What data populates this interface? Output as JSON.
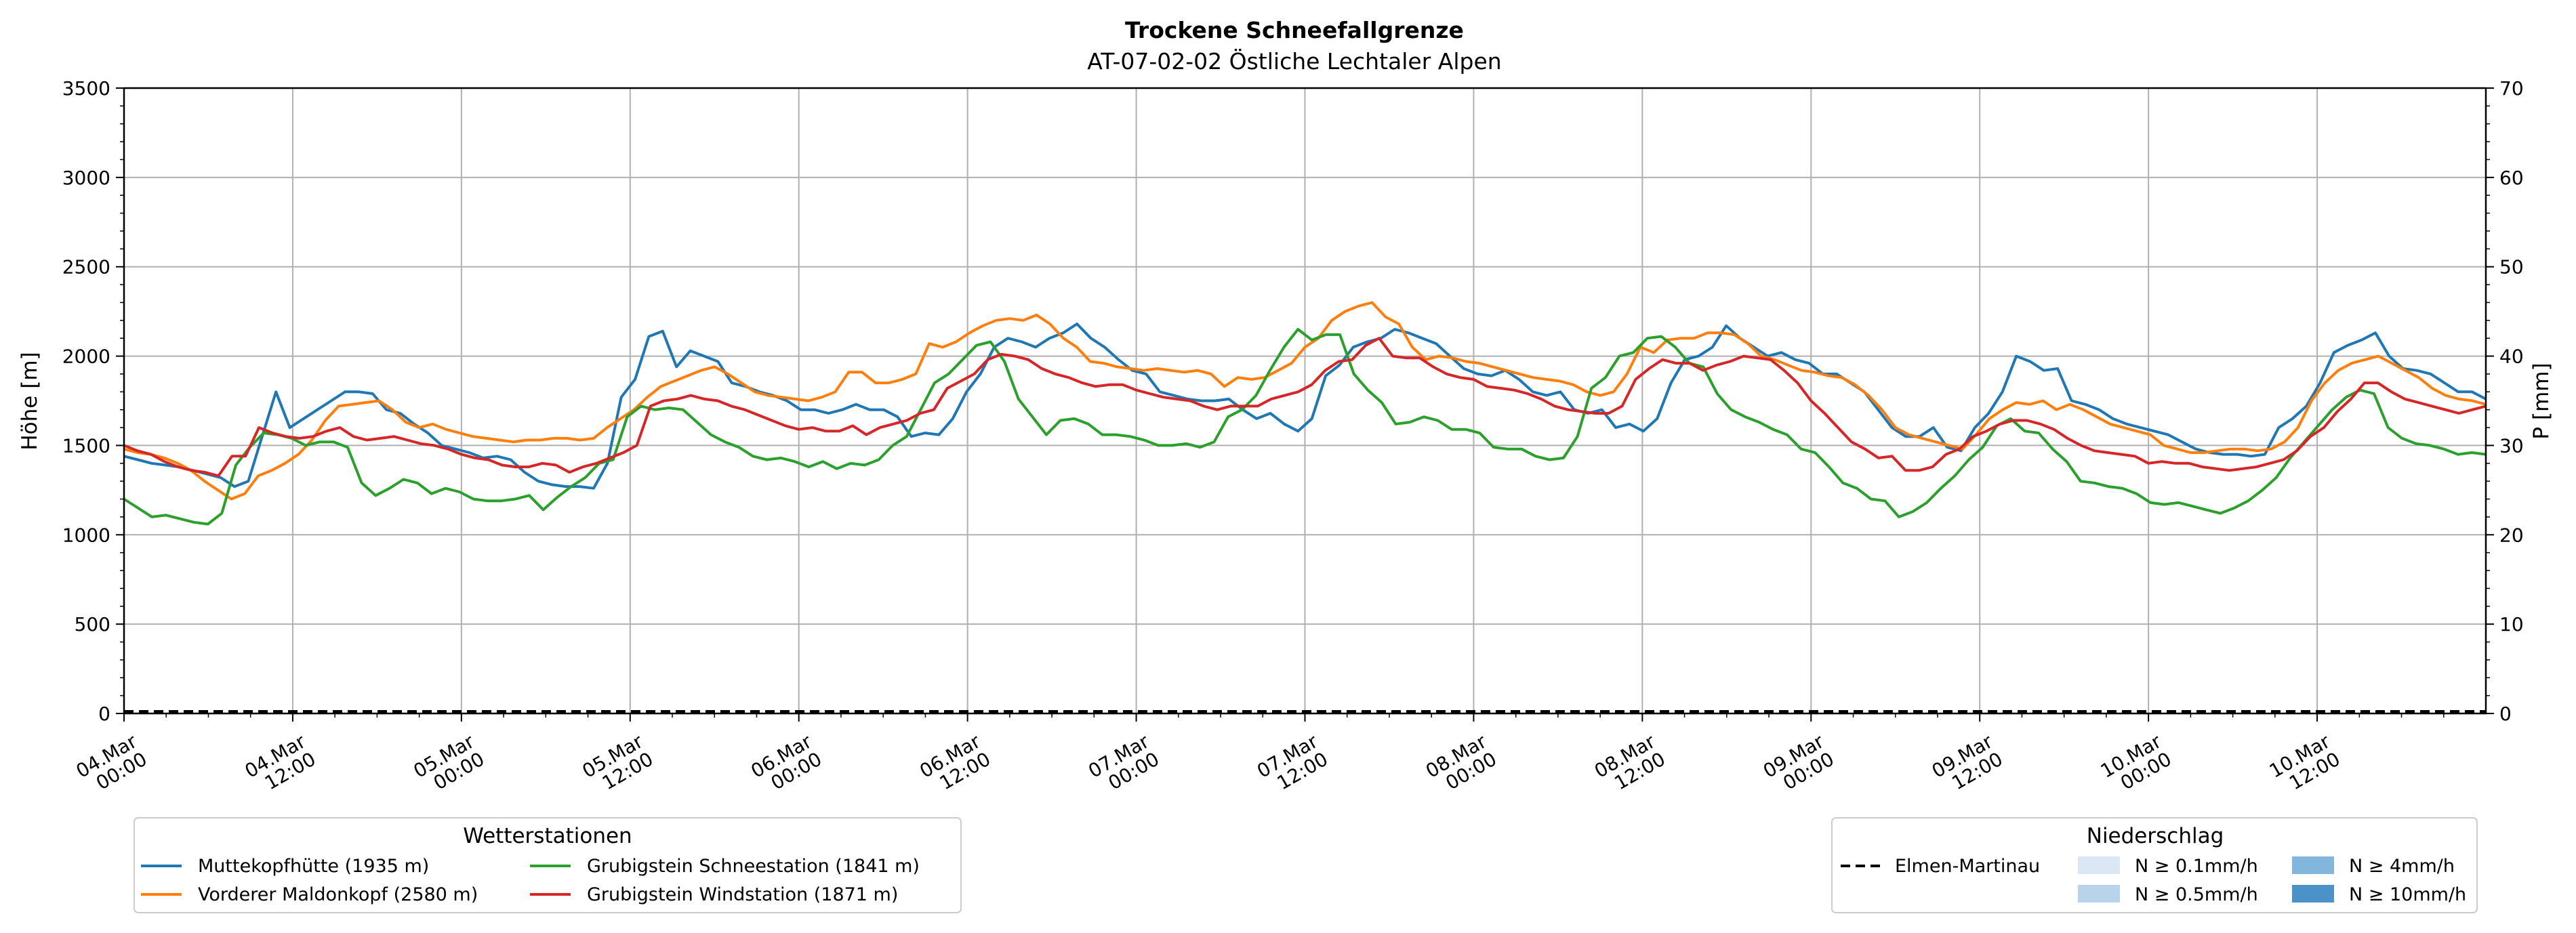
{
  "chart_data": {
    "type": "line",
    "title": "Trockene Schneefallgrenze",
    "subtitle": "AT-07-02-02 Östliche Lechtaler Alpen",
    "ylabel": "Höhe [m]",
    "y2label": "P [mm]",
    "xlim_hours": [
      0,
      168
    ],
    "ylim": [
      0,
      3500
    ],
    "y2lim": [
      0,
      70
    ],
    "yticks": [
      "0",
      "500",
      "1000",
      "1500",
      "2000",
      "2500",
      "3000",
      "3500"
    ],
    "y2ticks": [
      "0",
      "10",
      "20",
      "30",
      "40",
      "50",
      "60",
      "70"
    ],
    "xticks": [
      {
        "line1": "04.Mar",
        "line2": "00:00"
      },
      {
        "line1": "04.Mar",
        "line2": "12:00"
      },
      {
        "line1": "05.Mar",
        "line2": "00:00"
      },
      {
        "line1": "05.Mar",
        "line2": "12:00"
      },
      {
        "line1": "06.Mar",
        "line2": "00:00"
      },
      {
        "line1": "06.Mar",
        "line2": "12:00"
      },
      {
        "line1": "07.Mar",
        "line2": "00:00"
      },
      {
        "line1": "07.Mar",
        "line2": "12:00"
      },
      {
        "line1": "08.Mar",
        "line2": "00:00"
      },
      {
        "line1": "08.Mar",
        "line2": "12:00"
      },
      {
        "line1": "09.Mar",
        "line2": "00:00"
      },
      {
        "line1": "09.Mar",
        "line2": "12:00"
      },
      {
        "line1": "10.Mar",
        "line2": "00:00"
      },
      {
        "line1": "10.Mar",
        "line2": "12:00"
      }
    ],
    "grid": true,
    "series": [
      {
        "name": "Muttekopfhütte (1935 m)",
        "color": "#1f77b4",
        "values": [
          1440,
          1420,
          1400,
          1390,
          1380,
          1360,
          1340,
          1320,
          1270,
          1300,
          1550,
          1800,
          1600,
          1650,
          1700,
          1750,
          1800,
          1800,
          1790,
          1700,
          1680,
          1620,
          1570,
          1500,
          1480,
          1460,
          1430,
          1440,
          1420,
          1350,
          1300,
          1280,
          1270,
          1270,
          1260,
          1400,
          1770,
          1870,
          2110,
          2140,
          1940,
          2030,
          2000,
          1970,
          1850,
          1830,
          1800,
          1780,
          1750,
          1700,
          1700,
          1680,
          1700,
          1730,
          1700,
          1700,
          1660,
          1550,
          1570,
          1560,
          1650,
          1800,
          1900,
          2050,
          2100,
          2080,
          2050,
          2100,
          2130,
          2180,
          2100,
          2050,
          1980,
          1920,
          1900,
          1800,
          1780,
          1760,
          1750,
          1750,
          1760,
          1700,
          1650,
          1680,
          1620,
          1580,
          1650,
          1890,
          1950,
          2050,
          2080,
          2100,
          2150,
          2130,
          2100,
          2070,
          2000,
          1930,
          1900,
          1890,
          1920,
          1870,
          1800,
          1780,
          1800,
          1700,
          1680,
          1700,
          1600,
          1620,
          1580,
          1650,
          1850,
          1980,
          2000,
          2050,
          2170,
          2100,
          2050,
          2000,
          2020,
          1980,
          1960,
          1900,
          1900,
          1850,
          1800,
          1700,
          1600,
          1550,
          1550,
          1600,
          1490,
          1470,
          1600,
          1680,
          1800,
          2000,
          1970,
          1920,
          1930,
          1750,
          1730,
          1700,
          1650,
          1620,
          1600,
          1580,
          1560,
          1520,
          1480,
          1460,
          1450,
          1450,
          1440,
          1450,
          1600,
          1650,
          1720,
          1850,
          2020,
          2060,
          2090,
          2130,
          2000,
          1930,
          1920,
          1900,
          1850,
          1800,
          1800,
          1760
        ]
      },
      {
        "name": "Vorderer Maldonkopf (2580 m)",
        "color": "#ff7f0e",
        "values": [
          1480,
          1460,
          1450,
          1430,
          1400,
          1360,
          1300,
          1250,
          1200,
          1230,
          1330,
          1360,
          1400,
          1450,
          1530,
          1640,
          1720,
          1730,
          1740,
          1750,
          1700,
          1630,
          1600,
          1620,
          1590,
          1570,
          1550,
          1540,
          1530,
          1520,
          1530,
          1530,
          1540,
          1540,
          1530,
          1540,
          1600,
          1650,
          1700,
          1770,
          1830,
          1860,
          1890,
          1920,
          1940,
          1900,
          1850,
          1800,
          1780,
          1770,
          1760,
          1750,
          1770,
          1800,
          1910,
          1910,
          1850,
          1850,
          1870,
          1900,
          2070,
          2050,
          2080,
          2130,
          2170,
          2200,
          2210,
          2200,
          2230,
          2180,
          2100,
          2050,
          1970,
          1960,
          1940,
          1930,
          1920,
          1930,
          1920,
          1910,
          1920,
          1900,
          1830,
          1880,
          1870,
          1880,
          1920,
          1960,
          2050,
          2100,
          2200,
          2250,
          2280,
          2300,
          2220,
          2180,
          2050,
          1980,
          2000,
          1990,
          1970,
          1960,
          1940,
          1920,
          1900,
          1880,
          1870,
          1860,
          1840,
          1800,
          1780,
          1800,
          1900,
          2050,
          2020,
          2090,
          2100,
          2100,
          2130,
          2130,
          2120,
          2070,
          2000,
          1980,
          1950,
          1920,
          1910,
          1890,
          1880,
          1840,
          1780,
          1700,
          1600,
          1560,
          1540,
          1520,
          1500,
          1480,
          1560,
          1650,
          1700,
          1740,
          1730,
          1750,
          1700,
          1730,
          1700,
          1660,
          1620,
          1600,
          1580,
          1560,
          1500,
          1480,
          1460,
          1460,
          1470,
          1480,
          1480,
          1470,
          1480,
          1520,
          1600,
          1750,
          1850,
          1920,
          1960,
          1980,
          2000,
          1960,
          1920,
          1880,
          1820,
          1780,
          1760,
          1750,
          1730
        ]
      },
      {
        "name": "Grubigstein Schneestation (1841 m)",
        "color": "#2ca02c",
        "values": [
          1200,
          1150,
          1100,
          1110,
          1090,
          1070,
          1060,
          1120,
          1390,
          1490,
          1570,
          1560,
          1540,
          1500,
          1520,
          1520,
          1490,
          1290,
          1220,
          1260,
          1310,
          1290,
          1230,
          1260,
          1240,
          1200,
          1190,
          1190,
          1200,
          1220,
          1140,
          1210,
          1270,
          1320,
          1400,
          1420,
          1660,
          1720,
          1700,
          1710,
          1700,
          1630,
          1560,
          1520,
          1490,
          1440,
          1420,
          1430,
          1410,
          1380,
          1410,
          1370,
          1400,
          1390,
          1420,
          1500,
          1550,
          1700,
          1850,
          1900,
          1980,
          2060,
          2080,
          1970,
          1760,
          1660,
          1560,
          1640,
          1650,
          1620,
          1560,
          1560,
          1550,
          1530,
          1500,
          1500,
          1510,
          1490,
          1520,
          1660,
          1700,
          1780,
          1920,
          2050,
          2150,
          2090,
          2120,
          2120,
          1900,
          1810,
          1740,
          1620,
          1630,
          1660,
          1640,
          1590,
          1590,
          1570,
          1490,
          1480,
          1480,
          1440,
          1420,
          1430,
          1550,
          1820,
          1880,
          2000,
          2020,
          2100,
          2110,
          2050,
          1960,
          1940,
          1790,
          1700,
          1660,
          1630,
          1590,
          1560,
          1480,
          1460,
          1380,
          1290,
          1260,
          1200,
          1190,
          1100,
          1130,
          1180,
          1260,
          1330,
          1420,
          1490,
          1610,
          1650,
          1580,
          1570,
          1480,
          1410,
          1300,
          1290,
          1270,
          1260,
          1230,
          1180,
          1170,
          1180,
          1160,
          1140,
          1120,
          1150,
          1190,
          1250,
          1320,
          1430,
          1520,
          1610,
          1700,
          1770,
          1810,
          1790,
          1600,
          1540,
          1510,
          1500,
          1480,
          1450,
          1460,
          1450
        ]
      },
      {
        "name": "Grubigstein Windstation (1871 m)",
        "color": "#d62728",
        "values": [
          1500,
          1470,
          1450,
          1410,
          1380,
          1360,
          1350,
          1330,
          1440,
          1440,
          1600,
          1570,
          1550,
          1540,
          1550,
          1580,
          1600,
          1550,
          1530,
          1540,
          1550,
          1530,
          1510,
          1500,
          1480,
          1450,
          1430,
          1420,
          1390,
          1380,
          1380,
          1400,
          1390,
          1350,
          1380,
          1400,
          1430,
          1460,
          1500,
          1720,
          1750,
          1760,
          1780,
          1760,
          1750,
          1720,
          1700,
          1670,
          1640,
          1610,
          1590,
          1600,
          1580,
          1580,
          1610,
          1560,
          1600,
          1620,
          1640,
          1680,
          1700,
          1820,
          1860,
          1900,
          1980,
          2010,
          2000,
          1980,
          1930,
          1900,
          1880,
          1850,
          1830,
          1840,
          1840,
          1810,
          1790,
          1770,
          1760,
          1750,
          1720,
          1700,
          1720,
          1720,
          1720,
          1760,
          1780,
          1800,
          1840,
          1920,
          1970,
          1980,
          2060,
          2100,
          2000,
          1990,
          1990,
          1940,
          1900,
          1880,
          1870,
          1830,
          1820,
          1810,
          1790,
          1760,
          1720,
          1700,
          1690,
          1680,
          1680,
          1720,
          1870,
          1930,
          1980,
          1960,
          1960,
          1920,
          1950,
          1970,
          2000,
          1990,
          1980,
          1920,
          1850,
          1750,
          1680,
          1600,
          1520,
          1480,
          1430,
          1440,
          1360,
          1360,
          1380,
          1450,
          1480,
          1550,
          1580,
          1620,
          1640,
          1640,
          1620,
          1590,
          1540,
          1500,
          1470,
          1460,
          1450,
          1440,
          1400,
          1410,
          1400,
          1400,
          1380,
          1370,
          1360,
          1370,
          1380,
          1400,
          1420,
          1470,
          1550,
          1600,
          1690,
          1760,
          1850,
          1850,
          1800,
          1760,
          1740,
          1720,
          1700,
          1680,
          1700,
          1720
        ]
      }
    ],
    "precipitation": {
      "line_name": "Elmen-Martinau",
      "line_color": "#000000",
      "values_mm": [
        0,
        0
      ],
      "bins": [
        {
          "label": "N ≥ 0.1mm/h",
          "color": "#dbe7f4"
        },
        {
          "label": "N ≥ 0.5mm/h",
          "color": "#b9d3ea"
        },
        {
          "label": "N ≥ 4mm/h",
          "color": "#83b6dd"
        },
        {
          "label": "N ≥ 10mm/h",
          "color": "#4a92c8"
        }
      ]
    },
    "legend_left_title": "Wetterstationen",
    "legend_right_title": "Niederschlag"
  }
}
